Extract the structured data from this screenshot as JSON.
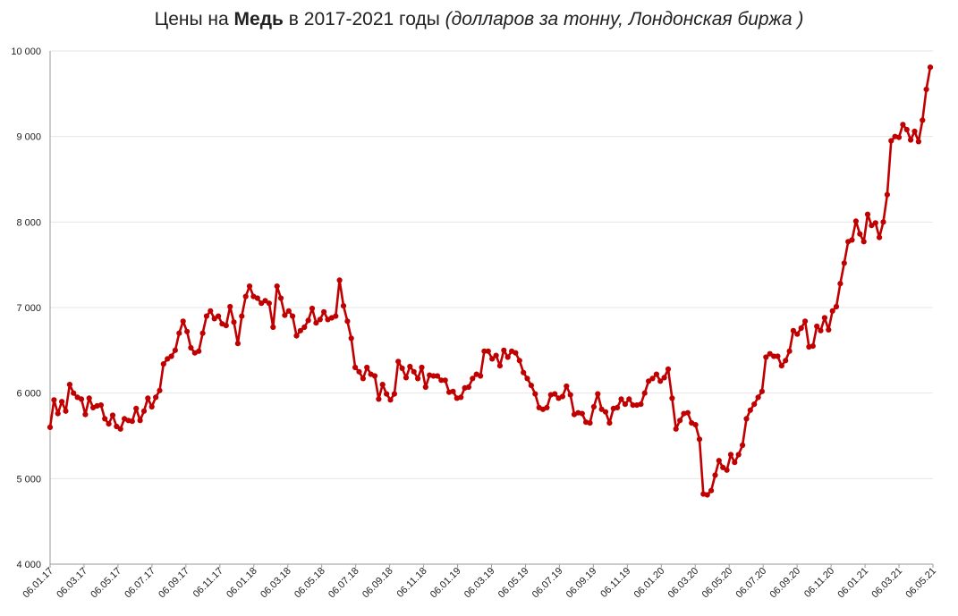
{
  "title": {
    "prefix": "Цены на ",
    "metal": "Медь",
    "period": " в 2017-2021 годы ",
    "units": "(долларов за тонну, Лондонская биржа )"
  },
  "chart_data": {
    "type": "line",
    "title": "Цены на Медь в 2017-2021 годы (долларов за тонну, Лондонская биржа )",
    "xlabel": "",
    "ylabel": "",
    "ylim": [
      4000,
      10000
    ],
    "y_ticks": [
      4000,
      5000,
      6000,
      7000,
      8000,
      9000,
      10000
    ],
    "y_tick_labels": [
      "4 000",
      "5 000",
      "6 000",
      "7 000",
      "8 000",
      "9 000",
      "10 000"
    ],
    "x_tick_labels": [
      "06.01.17",
      "06.03.17",
      "06.05.17",
      "06.07.17",
      "06.09.17",
      "06.11.17",
      "06.01.18",
      "06.03.18",
      "06.05.18",
      "06.07.18",
      "06.09.18",
      "06.11.18",
      "06.01.19",
      "06.03.19",
      "06.05.19",
      "06.07.19",
      "06.09.19",
      "06.11.19",
      "06.01.20",
      "06.03.20",
      "06.05.20",
      "06.07.20",
      "06.09.20",
      "06.11.20",
      "06.01.21",
      "06.03.21",
      "06.05.21"
    ],
    "grid": true,
    "color": "#c00000",
    "series": [
      {
        "values": [
          5600,
          5920,
          5760,
          5900,
          5790,
          6100,
          6000,
          5950,
          5930,
          5750,
          5940,
          5830,
          5850,
          5860,
          5700,
          5640,
          5740,
          5610,
          5580,
          5700,
          5680,
          5670,
          5820,
          5680,
          5790,
          5940,
          5840,
          5950,
          6030,
          6340,
          6400,
          6430,
          6500,
          6700,
          6840,
          6720,
          6530,
          6470,
          6490,
          6700,
          6900,
          6960,
          6870,
          6900,
          6810,
          6790,
          7010,
          6830,
          6580,
          6900,
          7130,
          7250,
          7130,
          7110,
          7050,
          7080,
          7050,
          6770,
          7250,
          7110,
          6910,
          6960,
          6900,
          6670,
          6730,
          6770,
          6850,
          6990,
          6820,
          6860,
          6950,
          6860,
          6880,
          6900,
          7320,
          7020,
          6840,
          6640,
          6300,
          6250,
          6170,
          6300,
          6220,
          6200,
          5930,
          6100,
          5990,
          5920,
          5990,
          6370,
          6290,
          6180,
          6310,
          6250,
          6170,
          6300,
          6070,
          6210,
          6200,
          6200,
          6150,
          6150,
          6010,
          6020,
          5940,
          5950,
          6060,
          6070,
          6170,
          6220,
          6200,
          6490,
          6490,
          6400,
          6440,
          6320,
          6500,
          6420,
          6490,
          6470,
          6380,
          6240,
          6170,
          6090,
          5990,
          5830,
          5810,
          5830,
          5980,
          5990,
          5940,
          5960,
          6080,
          5980,
          5750,
          5770,
          5760,
          5660,
          5650,
          5840,
          5990,
          5810,
          5780,
          5650,
          5820,
          5830,
          5930,
          5870,
          5930,
          5860,
          5860,
          5870,
          6000,
          6140,
          6170,
          6220,
          6140,
          6180,
          6280,
          5940,
          5580,
          5680,
          5760,
          5770,
          5650,
          5630,
          5460,
          4820,
          4810,
          4860,
          5040,
          5210,
          5130,
          5100,
          5280,
          5190,
          5280,
          5390,
          5700,
          5800,
          5870,
          5950,
          6020,
          6420,
          6460,
          6430,
          6430,
          6320,
          6380,
          6490,
          6730,
          6690,
          6760,
          6840,
          6540,
          6550,
          6780,
          6730,
          6880,
          6740,
          6960,
          7010,
          7280,
          7520,
          7770,
          7790,
          8010,
          7860,
          7770,
          8090,
          7960,
          7990,
          7820,
          8000,
          8320,
          8950,
          9000,
          8990,
          9140,
          9080,
          8960,
          9060,
          8940,
          9190,
          9550,
          9810
        ]
      }
    ]
  }
}
